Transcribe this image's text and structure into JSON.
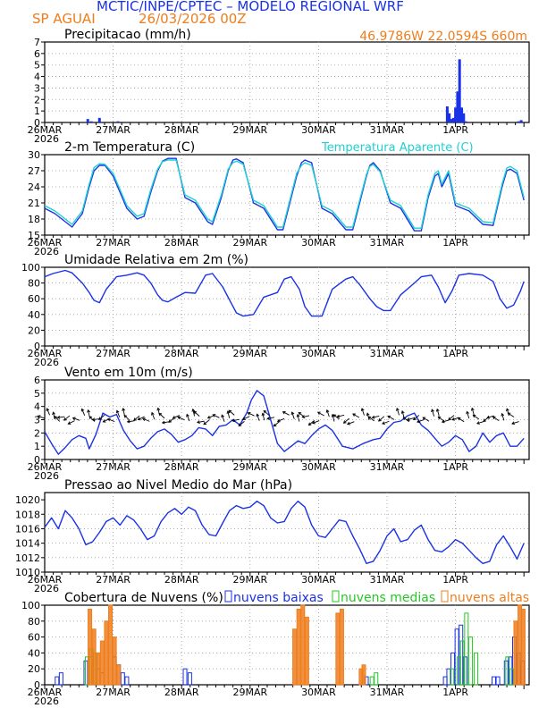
{
  "header": {
    "title": "MCTIC/INPE/CPTEC – MODELO REGIONAL WRF",
    "station": "SP AGUAI",
    "date": "26/03/2026 00Z",
    "location": "46.9786W 22.0594S 660m"
  },
  "colors": {
    "blue": "#1a32e6",
    "cyan": "#1fd0d0",
    "orange": "#ef7d1c",
    "green": "#25c725",
    "grid": "#9a9a9a"
  },
  "chart_data": [
    {
      "type": "bar",
      "title": "Precipitacao (mm/h)",
      "x_labels": [
        "26MAR",
        "27MAR",
        "28MAR",
        "29MAR",
        "30MAR",
        "31MAR",
        "1APR"
      ],
      "x_year": "2026",
      "x_range_days": [
        0,
        7
      ],
      "ylim": [
        0,
        7
      ],
      "yticks": [
        0,
        1,
        2,
        3,
        4,
        5,
        6,
        7
      ],
      "series": [
        {
          "name": "precipitacao",
          "color": "blue",
          "x": [
            0.63,
            0.68,
            0.8,
            1.07,
            5.88,
            5.91,
            5.94,
            5.97,
            6.0,
            6.03,
            6.06,
            6.09,
            6.12,
            6.15,
            6.92,
            6.96
          ],
          "values": [
            0.3,
            0.1,
            0.4,
            0.1,
            1.4,
            0.8,
            0.3,
            0.4,
            1.3,
            2.7,
            5.5,
            1.3,
            0.8,
            0.1,
            0.1,
            0.2
          ]
        }
      ]
    },
    {
      "type": "line",
      "title": "2-m Temperatura (C)",
      "legend": "Temperatura Aparente (C)",
      "x_labels": [
        "26MAR",
        "27MAR",
        "28MAR",
        "29MAR",
        "30MAR",
        "31MAR",
        "1APR"
      ],
      "x_year": "2026",
      "x_range_days": [
        0,
        7
      ],
      "ylim": [
        15,
        30
      ],
      "yticks": [
        15,
        18,
        21,
        24,
        27,
        30
      ],
      "series": [
        {
          "name": "Temperatura 2m",
          "color": "blue",
          "x": [
            0,
            0.15,
            0.3,
            0.4,
            0.55,
            0.65,
            0.72,
            0.8,
            0.88,
            1.0,
            1.2,
            1.35,
            1.45,
            1.55,
            1.65,
            1.72,
            1.8,
            1.92,
            2.05,
            2.2,
            2.38,
            2.45,
            2.58,
            2.68,
            2.75,
            2.8,
            2.9,
            3.05,
            3.2,
            3.4,
            3.48,
            3.6,
            3.68,
            3.75,
            3.8,
            3.9,
            4.05,
            4.2,
            4.4,
            4.5,
            4.6,
            4.7,
            4.75,
            4.8,
            4.9,
            5.05,
            5.2,
            5.4,
            5.5,
            5.6,
            5.7,
            5.75,
            5.8,
            5.9,
            6.0,
            6.2,
            6.4,
            6.55,
            6.68,
            6.75,
            6.8,
            6.9,
            7.0
          ],
          "values": [
            20,
            19,
            17.5,
            16.5,
            19,
            24,
            27,
            28,
            28,
            26,
            20,
            18,
            18.5,
            23,
            27,
            28.8,
            29.3,
            29.3,
            22,
            21,
            17.5,
            17,
            22,
            27,
            29,
            29.2,
            28.5,
            21,
            20,
            16,
            16,
            22,
            26,
            28.5,
            29,
            28.5,
            20,
            19,
            16,
            16,
            21,
            26,
            28,
            28.5,
            27,
            21,
            20,
            15.8,
            15.8,
            22,
            26,
            26.5,
            24,
            26.5,
            20.5,
            19.5,
            17,
            16.8,
            24,
            27,
            27.3,
            26.5,
            21.5
          ]
        },
        {
          "name": "Temperatura Aparente",
          "color": "cyan",
          "x": [
            0,
            0.15,
            0.3,
            0.4,
            0.55,
            0.65,
            0.72,
            0.8,
            0.88,
            1.0,
            1.2,
            1.35,
            1.45,
            1.55,
            1.65,
            1.72,
            1.8,
            1.92,
            2.05,
            2.2,
            2.38,
            2.45,
            2.58,
            2.68,
            2.75,
            2.8,
            2.9,
            3.05,
            3.2,
            3.4,
            3.48,
            3.6,
            3.68,
            3.75,
            3.8,
            3.9,
            4.05,
            4.2,
            4.4,
            4.5,
            4.6,
            4.7,
            4.75,
            4.8,
            4.9,
            5.05,
            5.2,
            5.4,
            5.5,
            5.6,
            5.7,
            5.75,
            5.8,
            5.9,
            6.0,
            6.2,
            6.4,
            6.55,
            6.68,
            6.75,
            6.8,
            6.9,
            7.0
          ],
          "values": [
            20.5,
            19.5,
            18,
            17,
            19.5,
            24.5,
            27.6,
            28.3,
            28.2,
            26.5,
            20.5,
            18.5,
            19,
            23.5,
            27.3,
            28.7,
            29,
            29,
            22.5,
            21.5,
            18,
            17.5,
            22.5,
            27.3,
            28.5,
            28.8,
            28.2,
            21.5,
            20.5,
            16.5,
            16.5,
            22.5,
            26.5,
            28,
            28.5,
            28,
            20.5,
            19.5,
            16.5,
            16.5,
            21.5,
            26.3,
            27.8,
            28.2,
            26.8,
            21.5,
            20.5,
            16.3,
            16.3,
            22.5,
            26.5,
            27,
            24.5,
            27,
            21,
            20,
            17.5,
            17.3,
            24.5,
            27.5,
            27.8,
            27,
            22
          ]
        }
      ]
    },
    {
      "type": "line",
      "title": "Umidade Relativa em 2m (%)",
      "x_labels": [
        "26MAR",
        "27MAR",
        "28MAR",
        "29MAR",
        "30MAR",
        "31MAR",
        "1APR"
      ],
      "x_year": "2026",
      "x_range_days": [
        0,
        7
      ],
      "ylim": [
        0,
        100
      ],
      "yticks": [
        0,
        20,
        40,
        60,
        80,
        100
      ],
      "series": [
        {
          "name": "Umidade Relativa",
          "color": "blue",
          "x": [
            0,
            0.12,
            0.3,
            0.4,
            0.55,
            0.65,
            0.72,
            0.8,
            0.9,
            1.05,
            1.2,
            1.35,
            1.45,
            1.55,
            1.65,
            1.72,
            1.8,
            1.92,
            2.05,
            2.2,
            2.35,
            2.45,
            2.6,
            2.72,
            2.8,
            2.9,
            3.05,
            3.2,
            3.4,
            3.5,
            3.6,
            3.72,
            3.8,
            3.9,
            4.05,
            4.2,
            4.4,
            4.5,
            4.6,
            4.75,
            4.85,
            4.95,
            5.05,
            5.2,
            5.4,
            5.5,
            5.65,
            5.75,
            5.85,
            5.95,
            6.05,
            6.2,
            6.4,
            6.55,
            6.65,
            6.75,
            6.85,
            6.95,
            7.0
          ],
          "values": [
            88,
            92,
            96,
            93,
            80,
            68,
            58,
            55,
            72,
            88,
            90,
            93,
            90,
            80,
            65,
            58,
            56,
            62,
            68,
            67,
            90,
            92,
            75,
            55,
            42,
            38,
            40,
            62,
            68,
            85,
            88,
            72,
            50,
            38,
            38,
            72,
            85,
            88,
            78,
            60,
            50,
            45,
            45,
            65,
            80,
            88,
            90,
            75,
            55,
            70,
            90,
            92,
            90,
            82,
            60,
            48,
            52,
            70,
            82
          ]
        }
      ]
    },
    {
      "type": "line",
      "title": "Vento em 10m (m/s)",
      "x_labels": [
        "26MAR",
        "27MAR",
        "28MAR",
        "29MAR",
        "30MAR",
        "31MAR",
        "1APR"
      ],
      "x_year": "2026",
      "x_range_days": [
        0,
        7
      ],
      "ylim": [
        0,
        6
      ],
      "yticks": [
        0,
        1,
        2,
        3,
        4,
        5,
        6
      ],
      "series": [
        {
          "name": "Velocidade do vento",
          "color": "blue",
          "x": [
            0,
            0.1,
            0.2,
            0.3,
            0.4,
            0.5,
            0.6,
            0.65,
            0.75,
            0.85,
            0.95,
            1.05,
            1.15,
            1.25,
            1.35,
            1.45,
            1.55,
            1.65,
            1.75,
            1.85,
            1.95,
            2.05,
            2.15,
            2.25,
            2.35,
            2.45,
            2.55,
            2.65,
            2.75,
            2.85,
            2.95,
            3.02,
            3.1,
            3.2,
            3.3,
            3.4,
            3.5,
            3.6,
            3.7,
            3.8,
            3.9,
            4.0,
            4.1,
            4.2,
            4.35,
            4.5,
            4.65,
            4.8,
            4.9,
            5.0,
            5.1,
            5.2,
            5.3,
            5.4,
            5.5,
            5.6,
            5.7,
            5.8,
            5.9,
            6.0,
            6.1,
            6.2,
            6.3,
            6.4,
            6.5,
            6.6,
            6.7,
            6.8,
            6.9,
            7.0
          ],
          "values": [
            2.1,
            1.2,
            0.4,
            0.9,
            1.5,
            1.8,
            1.6,
            0.8,
            1.9,
            3.5,
            3.2,
            3.4,
            2.2,
            1.4,
            0.8,
            1.0,
            1.6,
            2.1,
            2.3,
            1.9,
            1.3,
            1.5,
            1.8,
            2.4,
            2.3,
            1.8,
            2.5,
            2.6,
            3.0,
            2.6,
            3.5,
            4.5,
            5.2,
            4.8,
            3.0,
            1.2,
            0.6,
            1.0,
            1.4,
            1.2,
            1.8,
            2.3,
            2.6,
            2.2,
            1.0,
            0.8,
            1.2,
            1.5,
            1.6,
            2.3,
            2.8,
            2.9,
            3.3,
            3.5,
            2.6,
            2.2,
            1.6,
            1.0,
            1.3,
            1.8,
            1.5,
            0.6,
            1.0,
            2.0,
            1.3,
            1.8,
            2.0,
            1.0,
            1.0,
            1.6
          ]
        }
      ]
    },
    {
      "type": "line",
      "title": "Pressao ao Nivel Medio do Mar (hPa)",
      "x_labels": [
        "26MAR",
        "27MAR",
        "28MAR",
        "29MAR",
        "30MAR",
        "31MAR",
        "1APR"
      ],
      "x_year": "2026",
      "x_range_days": [
        0,
        7
      ],
      "ylim": [
        1010,
        1021
      ],
      "yticks": [
        1010,
        1012,
        1014,
        1016,
        1018,
        1020
      ],
      "series": [
        {
          "name": "Pressao",
          "color": "blue",
          "x": [
            0,
            0.1,
            0.2,
            0.3,
            0.4,
            0.5,
            0.6,
            0.7,
            0.8,
            0.9,
            1.0,
            1.1,
            1.2,
            1.3,
            1.4,
            1.5,
            1.6,
            1.7,
            1.8,
            1.9,
            2.0,
            2.1,
            2.2,
            2.3,
            2.4,
            2.5,
            2.6,
            2.7,
            2.8,
            2.9,
            3.0,
            3.1,
            3.2,
            3.3,
            3.4,
            3.5,
            3.6,
            3.7,
            3.8,
            3.9,
            4.0,
            4.1,
            4.2,
            4.3,
            4.4,
            4.5,
            4.6,
            4.7,
            4.8,
            4.9,
            5.0,
            5.1,
            5.2,
            5.3,
            5.4,
            5.5,
            5.6,
            5.7,
            5.8,
            5.9,
            6.0,
            6.1,
            6.2,
            6.3,
            6.4,
            6.5,
            6.6,
            6.7,
            6.8,
            6.9,
            7.0
          ],
          "values": [
            1016.2,
            1017.5,
            1016.0,
            1018.5,
            1017.5,
            1016.0,
            1013.8,
            1014.2,
            1015.5,
            1017.0,
            1017.5,
            1016.5,
            1017.8,
            1017.2,
            1016.0,
            1014.5,
            1015.0,
            1017.0,
            1018.2,
            1018.8,
            1018.0,
            1019.0,
            1018.5,
            1016.5,
            1015.2,
            1015.0,
            1016.8,
            1018.5,
            1019.2,
            1018.8,
            1019.0,
            1019.8,
            1019.2,
            1017.5,
            1016.8,
            1017.0,
            1018.8,
            1019.8,
            1019.0,
            1016.5,
            1015.0,
            1014.8,
            1016.0,
            1017.2,
            1017.0,
            1015.0,
            1013.2,
            1011.2,
            1011.5,
            1013.0,
            1015.0,
            1016.0,
            1014.2,
            1014.5,
            1015.8,
            1016.5,
            1014.5,
            1013.0,
            1012.8,
            1013.5,
            1014.5,
            1014.0,
            1013.0,
            1012.0,
            1011.2,
            1011.5,
            1013.8,
            1015.0,
            1013.5,
            1011.8,
            1014.0
          ]
        }
      ]
    },
    {
      "type": "bar",
      "title": "Cobertura de Nuvens (%)",
      "x_labels": [
        "26MAR",
        "27MAR",
        "28MAR",
        "29MAR",
        "30MAR",
        "31MAR",
        "1APR"
      ],
      "x_year": "2026",
      "x_range_days": [
        0,
        7
      ],
      "ylim": [
        0,
        100
      ],
      "yticks": [
        0,
        20,
        40,
        60,
        80,
        100
      ],
      "series": [
        {
          "name": "nuvens baixas",
          "color": "blue",
          "x": [
            0.18,
            0.24,
            0.6,
            0.66,
            0.72,
            0.78,
            0.84,
            1.02,
            1.08,
            1.14,
            1.2,
            2.05,
            2.12,
            4.7,
            5.85,
            5.9,
            5.96,
            6.02,
            6.08,
            6.14,
            6.56,
            6.62,
            6.74,
            6.8,
            6.86,
            6.92,
            6.98
          ],
          "values": [
            10,
            15,
            30,
            35,
            40,
            20,
            15,
            35,
            25,
            15,
            10,
            20,
            15,
            10,
            10,
            20,
            40,
            70,
            75,
            35,
            10,
            10,
            30,
            35,
            60,
            40,
            30
          ]
        },
        {
          "name": "nuvens medias",
          "color": "green",
          "x": [
            0.62,
            0.68,
            0.74,
            4.78,
            4.84,
            5.95,
            6.05,
            6.1,
            6.16,
            6.22,
            6.3,
            6.76,
            6.82
          ],
          "values": [
            35,
            45,
            40,
            10,
            15,
            20,
            35,
            55,
            90,
            60,
            40,
            35,
            20
          ]
        },
        {
          "name": "nuvens altas",
          "color": "orange",
          "x": [
            0.66,
            0.72,
            0.78,
            0.84,
            0.9,
            0.96,
            1.02,
            1.08,
            3.65,
            3.71,
            3.77,
            3.83,
            4.28,
            4.34,
            4.62,
            4.66,
            6.88,
            6.94,
            6.99
          ],
          "values": [
            95,
            70,
            40,
            55,
            80,
            100,
            60,
            25,
            70,
            95,
            100,
            85,
            90,
            95,
            20,
            25,
            80,
            100,
            95
          ]
        }
      ]
    }
  ]
}
